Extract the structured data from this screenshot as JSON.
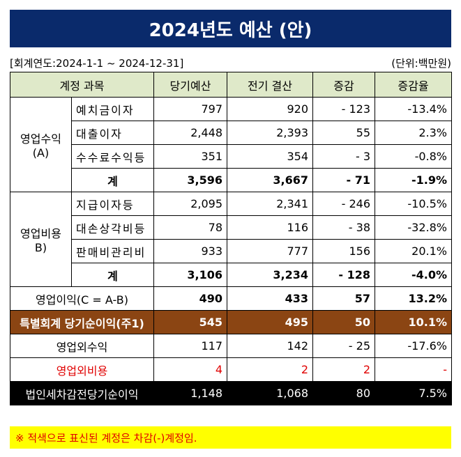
{
  "title": "2024년도 예산 (안)",
  "period": "[회계연도:2024-1-1 ~ 2024-12-31]",
  "unit": "(단위:백만원)",
  "headers": [
    "계정 과목",
    "당기예산",
    "전기 결산",
    "증감",
    "증감율"
  ],
  "revenue": {
    "group": "영업수익\n(A)",
    "rows": [
      {
        "name": "예치금이자",
        "cur": "797",
        "prev": "920",
        "diff": "- 123",
        "rate": "-13.4%"
      },
      {
        "name": "대출이자",
        "cur": "2,448",
        "prev": "2,393",
        "diff": "55",
        "rate": "2.3%"
      },
      {
        "name": "수수료수익등",
        "cur": "351",
        "prev": "354",
        "diff": "- 3",
        "rate": "-0.8%"
      }
    ],
    "total": {
      "name": "계",
      "cur": "3,596",
      "prev": "3,667",
      "diff": "- 71",
      "rate": "-1.9%"
    }
  },
  "expense": {
    "group": "영업비용B)",
    "rows": [
      {
        "name": "지급이자등",
        "cur": "2,095",
        "prev": "2,341",
        "diff": "- 246",
        "rate": "-10.5%"
      },
      {
        "name": "대손상각비등",
        "cur": "78",
        "prev": "116",
        "diff": "- 38",
        "rate": "-32.8%"
      },
      {
        "name": "판매비관리비",
        "cur": "933",
        "prev": "777",
        "diff": "156",
        "rate": "20.1%"
      }
    ],
    "total": {
      "name": "계",
      "cur": "3,106",
      "prev": "3,234",
      "diff": "- 128",
      "rate": "-4.0%"
    }
  },
  "operating_income": {
    "name": "영업이익(C = A-B)",
    "cur": "490",
    "prev": "433",
    "diff": "57",
    "rate": "13.2%"
  },
  "special": {
    "name": "특별회계 당기순이익(주1)",
    "cur": "545",
    "prev": "495",
    "diff": "50",
    "rate": "10.1%"
  },
  "non_op_income": {
    "name": "영업외수익",
    "cur": "117",
    "prev": "142",
    "diff": "- 25",
    "rate": "-17.6%"
  },
  "non_op_expense": {
    "name": "영업외비용",
    "cur": "4",
    "prev": "2",
    "diff": "2",
    "rate": "-"
  },
  "pretax": {
    "name": "법인세차감전당기순이익",
    "cur": "1,148",
    "prev": "1,068",
    "diff": "80",
    "rate": "7.5%"
  },
  "note": "※ 적색으로 표신된 계정은 차감(-)계정임.",
  "colors": {
    "title_bg": "#0a2a6b",
    "header_bg": "#dfe9c9",
    "special_bg": "#8b4513",
    "note_bg": "#ffff00",
    "red": "#e00000"
  }
}
